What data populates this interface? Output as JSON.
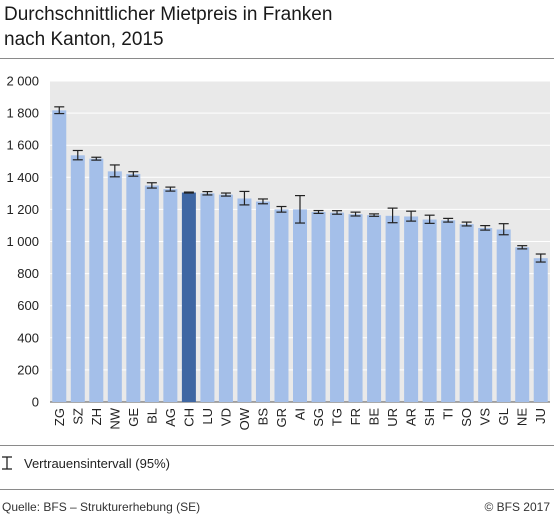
{
  "title_lines": [
    "Durchschnittlicher Mietpreis in Franken",
    "nach Kanton, 2015"
  ],
  "legend_label": "Vertrauensintervall (95%)",
  "source": "Quelle: BFS – Strukturerhebung (SE)",
  "copyright": "© BFS 2017",
  "colors": {
    "bar": "#a4bfe9",
    "highlight": "#3f67a3",
    "plot_bg": "#e9e9e9",
    "grid": "#ffffff",
    "error": "#222222"
  },
  "chart_data": {
    "type": "bar",
    "title": "Durchschnittlicher Mietpreis in Franken nach Kanton, 2015",
    "xlabel": "",
    "ylabel": "",
    "ylim": [
      0,
      2000
    ],
    "yticks": [
      0,
      200,
      400,
      600,
      800,
      1000,
      1200,
      1400,
      1600,
      1800,
      2000
    ],
    "ytick_labels": [
      "0",
      "200",
      "400",
      "600",
      "800",
      "1 000",
      "1 200",
      "1 400",
      "1 600",
      "1 800",
      "2 000"
    ],
    "grid": true,
    "highlight_category": "CH",
    "categories": [
      "ZG",
      "SZ",
      "ZH",
      "NW",
      "GE",
      "BL",
      "AG",
      "CH",
      "LU",
      "VD",
      "OW",
      "BS",
      "GR",
      "AI",
      "SG",
      "TG",
      "FR",
      "BE",
      "UR",
      "AR",
      "SH",
      "TI",
      "SO",
      "VS",
      "GL",
      "NE",
      "JU"
    ],
    "values": [
      1817,
      1537,
      1516,
      1437,
      1421,
      1349,
      1326,
      1305,
      1300,
      1292,
      1268,
      1249,
      1200,
      1200,
      1184,
      1180,
      1170,
      1164,
      1160,
      1156,
      1137,
      1132,
      1108,
      1084,
      1075,
      964,
      896
    ],
    "ci_low": [
      1797,
      1509,
      1507,
      1403,
      1407,
      1333,
      1314,
      1302,
      1290,
      1283,
      1228,
      1235,
      1183,
      1115,
      1175,
      1170,
      1159,
      1157,
      1117,
      1127,
      1113,
      1121,
      1097,
      1071,
      1042,
      954,
      872
    ],
    "ci_high": [
      1839,
      1567,
      1525,
      1477,
      1435,
      1366,
      1339,
      1308,
      1311,
      1302,
      1312,
      1265,
      1218,
      1286,
      1193,
      1192,
      1183,
      1172,
      1208,
      1189,
      1164,
      1144,
      1121,
      1099,
      1111,
      974,
      922
    ]
  }
}
